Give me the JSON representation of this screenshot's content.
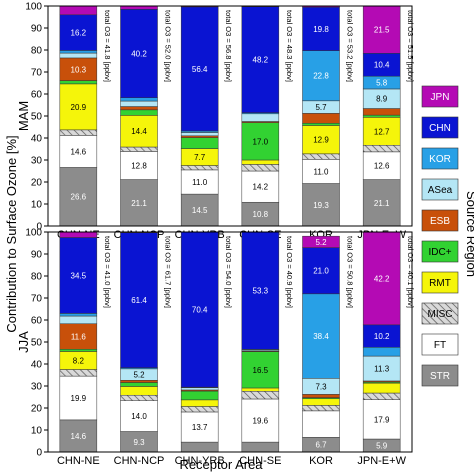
{
  "chart_data": {
    "type": "bar",
    "stacked": true,
    "xlabel": "Receptor Area",
    "ylabel": "Contribution to Surface Ozone [%]",
    "legend_title": "Source Region",
    "legend_placement": "right",
    "ylim": [
      0,
      100
    ],
    "yticks": [
      "0",
      "10",
      "20",
      "30",
      "40",
      "50",
      "60",
      "70",
      "80",
      "90",
      "100"
    ],
    "categories": [
      "CHN-NE",
      "CHN-NCP",
      "CHN-YRB",
      "CHN-SE",
      "KOR",
      "JPN-E+W"
    ],
    "total_prefix": "total O3 = ",
    "total_unit": "[ppbv]",
    "legend": [
      {
        "key": "JPN",
        "label": "JPN",
        "color": "#b40ab4",
        "text": "#ffffff"
      },
      {
        "key": "CHN",
        "label": "CHN",
        "color": "#0a14d2",
        "text": "#ffffff"
      },
      {
        "key": "KOR",
        "label": "KOR",
        "color": "#28a0e6",
        "text": "#ffffff"
      },
      {
        "key": "ASea",
        "label": "ASea",
        "color": "#b4e6f5",
        "text": "#000000"
      },
      {
        "key": "ESB",
        "label": "ESB",
        "color": "#c8500a",
        "text": "#ffffff"
      },
      {
        "key": "IDC",
        "label": "IDC+",
        "color": "#32d232",
        "text": "#000000"
      },
      {
        "key": "RMT",
        "label": "RMT",
        "color": "#f5f50a",
        "text": "#000000"
      },
      {
        "key": "MISC",
        "label": "MISC",
        "color": "#c8c8c8",
        "text": "#000000",
        "hatch": true
      },
      {
        "key": "FT",
        "label": "FT",
        "color": "#ffffff",
        "text": "#000000"
      },
      {
        "key": "STR",
        "label": "STR",
        "color": "#8c8c8c",
        "text": "#ffffff"
      }
    ],
    "panels": [
      {
        "season": "MAM",
        "totals": [
          "41.8",
          "52.0",
          "56.8",
          "48.3",
          "53.2",
          "51.5"
        ],
        "bars": [
          [
            {
              "k": "STR",
              "v": 26.6,
              "t": "26.6"
            },
            {
              "k": "FT",
              "v": 14.6,
              "t": "14.6"
            },
            {
              "k": "MISC",
              "v": 2.5
            },
            {
              "k": "RMT",
              "v": 20.9,
              "t": "20.9"
            },
            {
              "k": "IDC",
              "v": 1.5
            },
            {
              "k": "ESB",
              "v": 10.3,
              "t": "10.3"
            },
            {
              "k": "ASea",
              "v": 2.2
            },
            {
              "k": "KOR",
              "v": 1.2
            },
            {
              "k": "CHN",
              "v": 16.2,
              "t": "16.2"
            },
            {
              "k": "JPN",
              "v": 4.0
            }
          ],
          [
            {
              "k": "STR",
              "v": 21.1,
              "t": "21.1"
            },
            {
              "k": "FT",
              "v": 12.8,
              "t": "12.8"
            },
            {
              "k": "MISC",
              "v": 2.0
            },
            {
              "k": "RMT",
              "v": 14.4,
              "t": "14.4"
            },
            {
              "k": "IDC",
              "v": 2.5
            },
            {
              "k": "ESB",
              "v": 1.5
            },
            {
              "k": "ASea",
              "v": 2.5
            },
            {
              "k": "KOR",
              "v": 1.5
            },
            {
              "k": "CHN",
              "v": 40.2,
              "t": "40.2"
            },
            {
              "k": "JPN",
              "v": 1.5
            }
          ],
          [
            {
              "k": "STR",
              "v": 14.5,
              "t": "14.5"
            },
            {
              "k": "FT",
              "v": 11.0,
              "t": "11.0"
            },
            {
              "k": "MISC",
              "v": 2.0
            },
            {
              "k": "RMT",
              "v": 7.7,
              "t": "7.7"
            },
            {
              "k": "IDC",
              "v": 5.0
            },
            {
              "k": "ESB",
              "v": 0.8
            },
            {
              "k": "ASea",
              "v": 1.5
            },
            {
              "k": "KOR",
              "v": 0.7
            },
            {
              "k": "CHN",
              "v": 56.4,
              "t": "56.4"
            },
            {
              "k": "JPN",
              "v": 0.4
            }
          ],
          [
            {
              "k": "STR",
              "v": 10.8,
              "t": "10.8"
            },
            {
              "k": "FT",
              "v": 14.2,
              "t": "14.2"
            },
            {
              "k": "MISC",
              "v": 3.0
            },
            {
              "k": "RMT",
              "v": 2.0
            },
            {
              "k": "IDC",
              "v": 17.0,
              "t": "17.0"
            },
            {
              "k": "ESB",
              "v": 0.5
            },
            {
              "k": "ASea",
              "v": 3.5
            },
            {
              "k": "KOR",
              "v": 0.5
            },
            {
              "k": "CHN",
              "v": 48.2,
              "t": "48.2"
            },
            {
              "k": "JPN",
              "v": 0.3
            }
          ],
          [
            {
              "k": "STR",
              "v": 19.3,
              "t": "19.3"
            },
            {
              "k": "FT",
              "v": 11.0,
              "t": "11.0"
            },
            {
              "k": "MISC",
              "v": 2.5
            },
            {
              "k": "RMT",
              "v": 12.9,
              "t": "12.9"
            },
            {
              "k": "IDC",
              "v": 1.0
            },
            {
              "k": "ESB",
              "v": 4.5
            },
            {
              "k": "ASea",
              "v": 5.7,
              "t": "5.7"
            },
            {
              "k": "KOR",
              "v": 22.8,
              "t": "22.8"
            },
            {
              "k": "CHN",
              "v": 19.8,
              "t": "19.8"
            },
            {
              "k": "JPN",
              "v": 0.5
            }
          ],
          [
            {
              "k": "STR",
              "v": 21.1,
              "t": "21.1"
            },
            {
              "k": "FT",
              "v": 12.6,
              "t": "12.6"
            },
            {
              "k": "MISC",
              "v": 3.0
            },
            {
              "k": "RMT",
              "v": 12.7,
              "t": "12.7"
            },
            {
              "k": "IDC",
              "v": 1.0
            },
            {
              "k": "ESB",
              "v": 3.0
            },
            {
              "k": "ASea",
              "v": 8.9,
              "t": "8.9"
            },
            {
              "k": "KOR",
              "v": 5.8,
              "t": "5.8"
            },
            {
              "k": "CHN",
              "v": 10.4,
              "t": "10.4"
            },
            {
              "k": "JPN",
              "v": 21.5,
              "t": "21.5"
            }
          ]
        ]
      },
      {
        "season": "JJA",
        "totals": [
          "41.0",
          "61.7",
          "54.0",
          "40.9",
          "50.8",
          "40.1"
        ],
        "bars": [
          [
            {
              "k": "STR",
              "v": 14.6,
              "t": "14.6"
            },
            {
              "k": "FT",
              "v": 19.9,
              "t": "19.9"
            },
            {
              "k": "MISC",
              "v": 3.0
            },
            {
              "k": "RMT",
              "v": 8.2,
              "t": "8.2"
            },
            {
              "k": "IDC",
              "v": 1.0
            },
            {
              "k": "ESB",
              "v": 11.6,
              "t": "11.6"
            },
            {
              "k": "ASea",
              "v": 3.5
            },
            {
              "k": "KOR",
              "v": 1.2
            },
            {
              "k": "CHN",
              "v": 34.5,
              "t": "34.5"
            },
            {
              "k": "JPN",
              "v": 2.5
            }
          ],
          [
            {
              "k": "STR",
              "v": 9.3,
              "t": "9.3"
            },
            {
              "k": "FT",
              "v": 14.0,
              "t": "14.0"
            },
            {
              "k": "MISC",
              "v": 2.5
            },
            {
              "k": "RMT",
              "v": 4.0
            },
            {
              "k": "IDC",
              "v": 1.8
            },
            {
              "k": "ESB",
              "v": 1.0
            },
            {
              "k": "ASea",
              "v": 5.2,
              "t": "5.2"
            },
            {
              "k": "KOR",
              "v": 0.5
            },
            {
              "k": "CHN",
              "v": 61.4,
              "t": "61.4"
            },
            {
              "k": "JPN",
              "v": 0.3
            }
          ],
          [
            {
              "k": "STR",
              "v": 4.5
            },
            {
              "k": "FT",
              "v": 13.7,
              "t": "13.7"
            },
            {
              "k": "MISC",
              "v": 2.5
            },
            {
              "k": "RMT",
              "v": 3.0
            },
            {
              "k": "IDC",
              "v": 4.0
            },
            {
              "k": "ESB",
              "v": 0.5
            },
            {
              "k": "ASea",
              "v": 1.0
            },
            {
              "k": "KOR",
              "v": 0.3
            },
            {
              "k": "CHN",
              "v": 70.4,
              "t": "70.4"
            },
            {
              "k": "JPN",
              "v": 0.1
            }
          ],
          [
            {
              "k": "STR",
              "v": 4.5
            },
            {
              "k": "FT",
              "v": 19.6,
              "t": "19.6"
            },
            {
              "k": "MISC",
              "v": 3.5
            },
            {
              "k": "RMT",
              "v": 1.5
            },
            {
              "k": "IDC",
              "v": 16.5,
              "t": "16.5"
            },
            {
              "k": "ESB",
              "v": 0.3
            },
            {
              "k": "ASea",
              "v": 0.5
            },
            {
              "k": "KOR",
              "v": 0.3
            },
            {
              "k": "CHN",
              "v": 53.3,
              "t": "53.3"
            },
            {
              "k": "JPN",
              "v": 0.0
            }
          ],
          [
            {
              "k": "STR",
              "v": 6.7,
              "t": "6.7"
            },
            {
              "k": "FT",
              "v": 12.0
            },
            {
              "k": "MISC",
              "v": 2.5
            },
            {
              "k": "RMT",
              "v": 3.0
            },
            {
              "k": "IDC",
              "v": 0.5
            },
            {
              "k": "ESB",
              "v": 1.5
            },
            {
              "k": "ASea",
              "v": 7.3,
              "t": "7.3"
            },
            {
              "k": "KOR",
              "v": 38.4,
              "t": "38.4"
            },
            {
              "k": "CHN",
              "v": 21.0,
              "t": "21.0"
            },
            {
              "k": "JPN",
              "v": 5.2,
              "t": "5.2"
            }
          ],
          [
            {
              "k": "STR",
              "v": 5.9,
              "t": "5.9"
            },
            {
              "k": "FT",
              "v": 17.9,
              "t": "17.9"
            },
            {
              "k": "MISC",
              "v": 3.0
            },
            {
              "k": "RMT",
              "v": 4.5
            },
            {
              "k": "IDC",
              "v": 0.5
            },
            {
              "k": "ESB",
              "v": 0.5
            },
            {
              "k": "ASea",
              "v": 11.3,
              "t": "11.3"
            },
            {
              "k": "KOR",
              "v": 4.0
            },
            {
              "k": "CHN",
              "v": 10.2,
              "t": "10.2"
            },
            {
              "k": "JPN",
              "v": 42.2,
              "t": "42.2"
            }
          ]
        ]
      }
    ]
  }
}
